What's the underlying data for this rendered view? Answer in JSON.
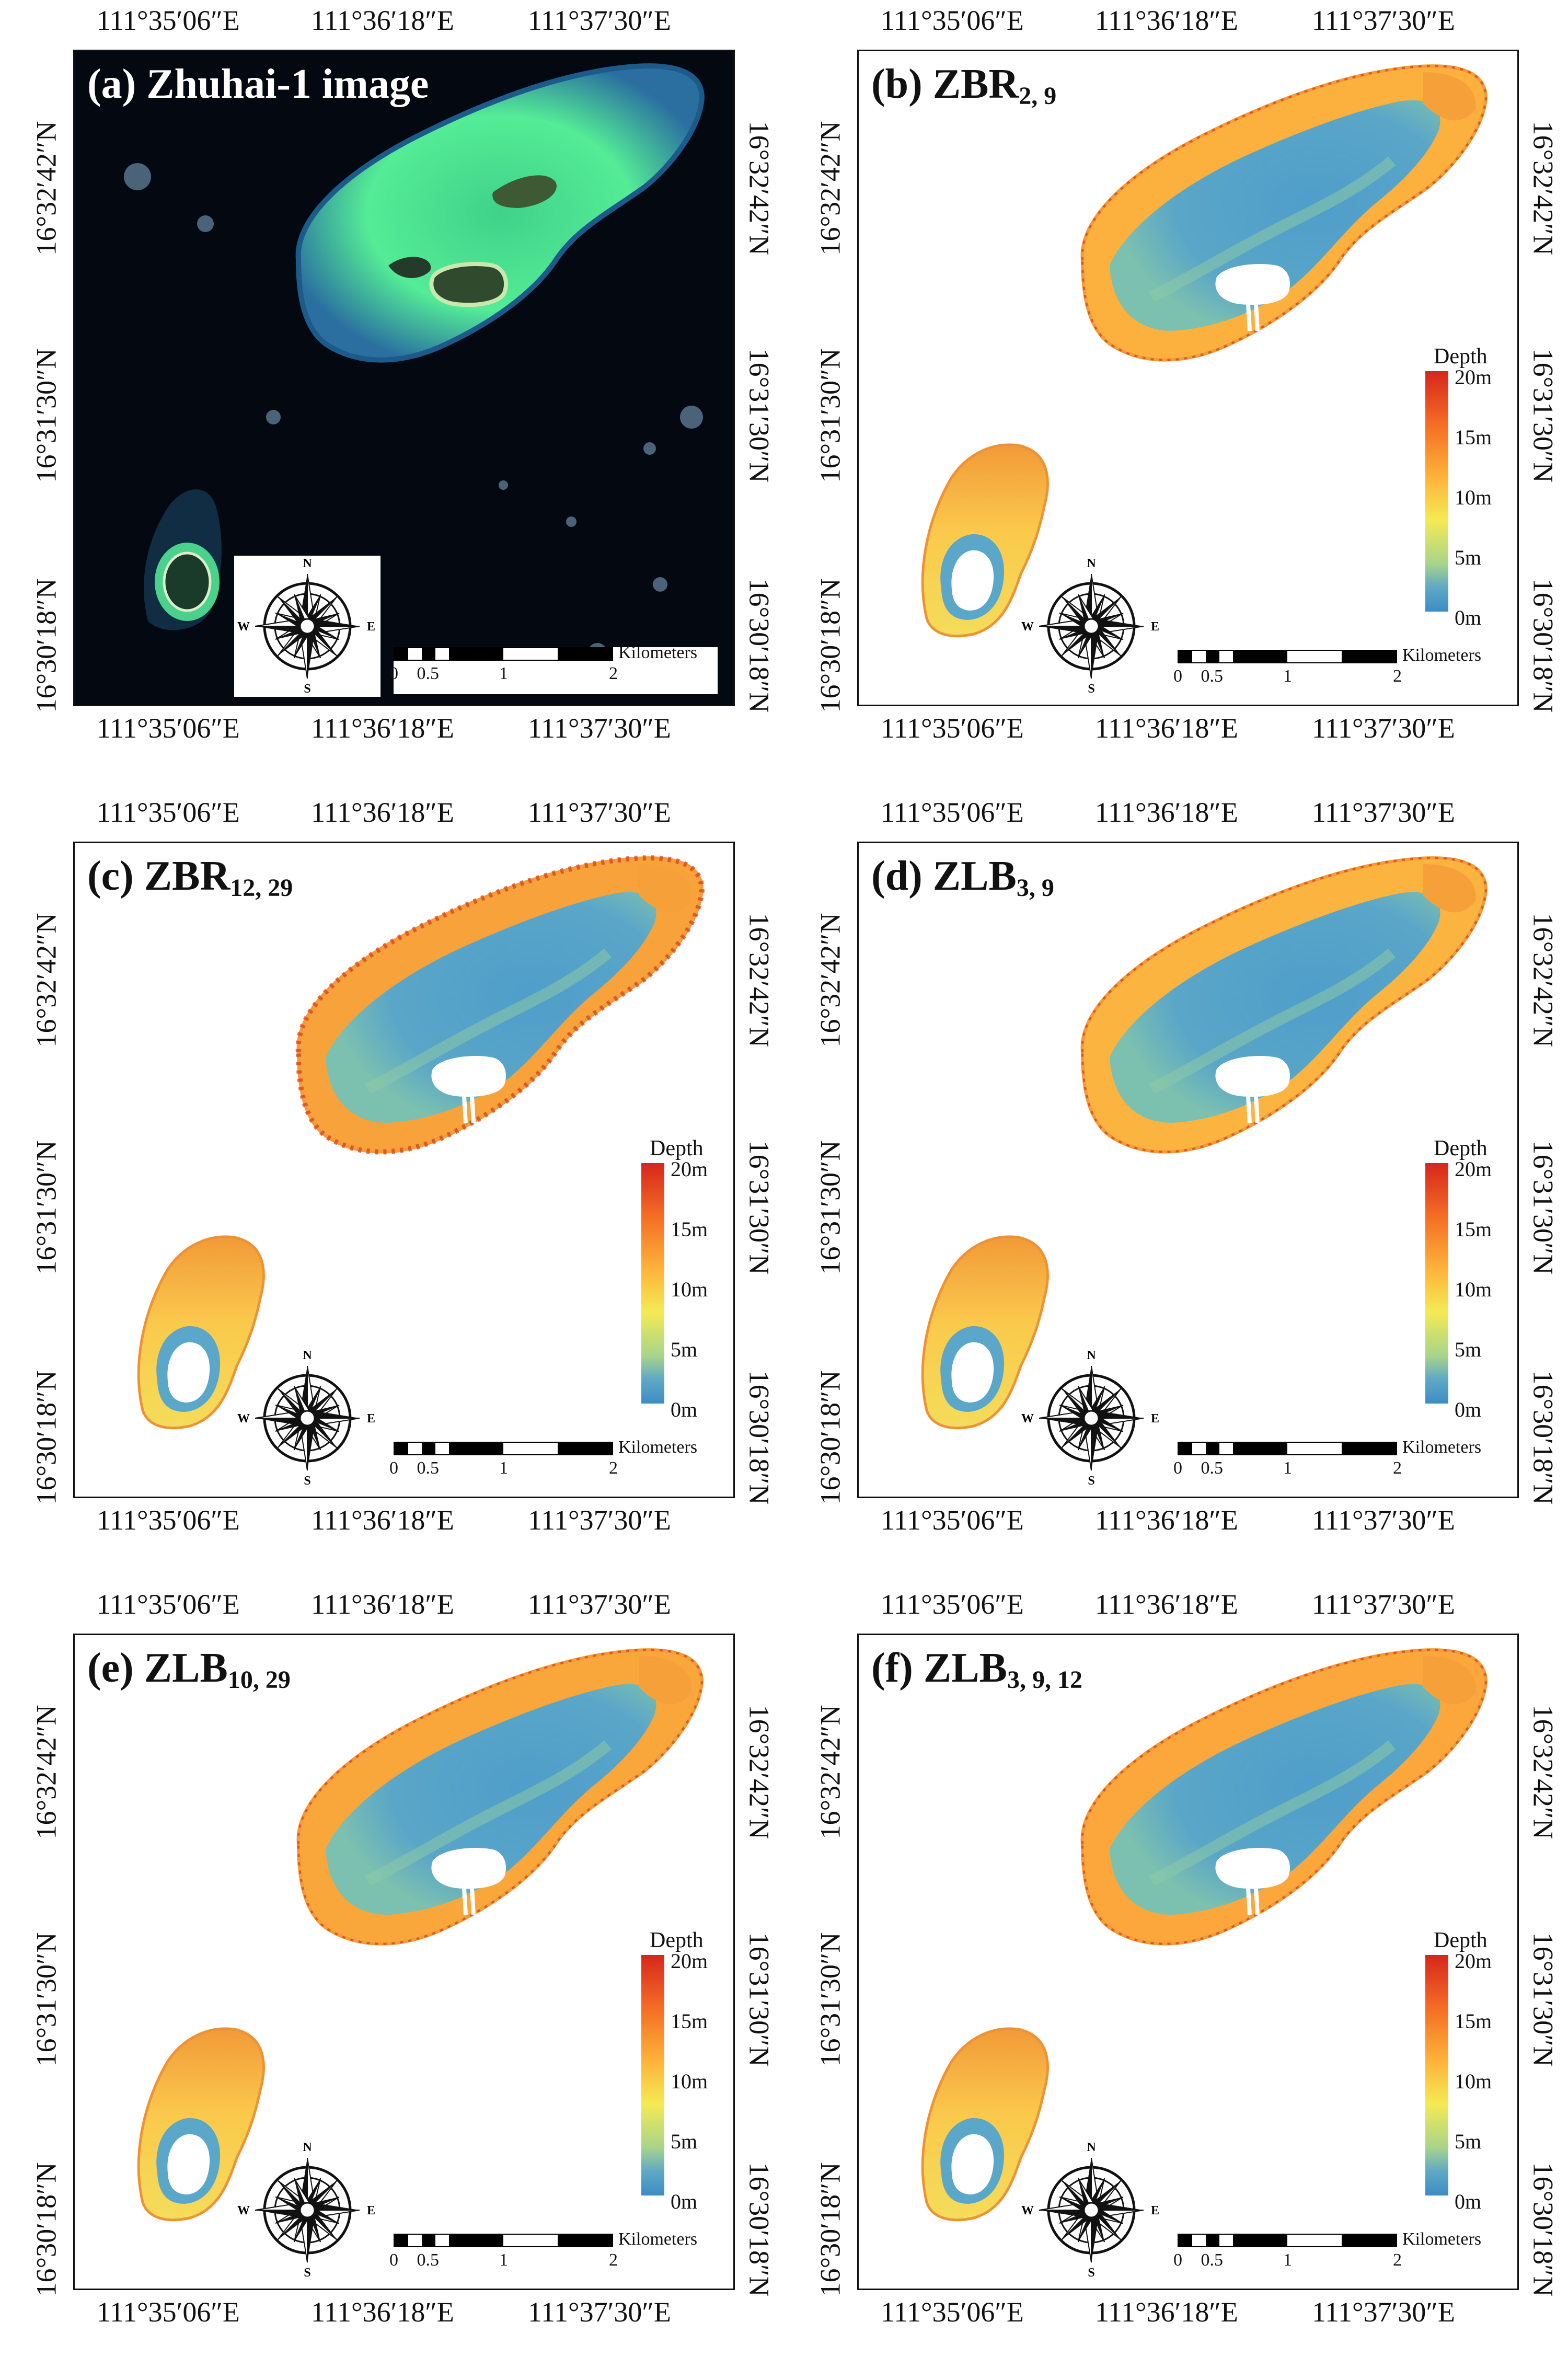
{
  "figure": {
    "lon_ticks": [
      "111°35′06″E",
      "111°36′18″E",
      "111°37′30″E"
    ],
    "lat_ticks": [
      "16°32′42″N",
      "16°31′30″N",
      "16°30′18″N"
    ],
    "colors": {
      "depth_0": "#3c8cc4",
      "depth_5": "#8ccaa8",
      "depth_10": "#f4ea55",
      "depth_15": "#fdae38",
      "depth_20": "#d7261c",
      "satellite_sea": "#040810",
      "satellite_reef": "#4ee88e"
    }
  },
  "legend": {
    "title": "Depth",
    "max_m": 20,
    "labels": [
      "20m",
      "15m",
      "10m",
      "5m",
      "0m"
    ]
  },
  "compass": {
    "n": "N",
    "s": "S",
    "e": "E",
    "w": "W"
  },
  "scalebar": {
    "unit": "Kilometers",
    "labels": [
      "0",
      "0.5",
      "1",
      "2"
    ]
  },
  "panels": [
    {
      "id": "a",
      "prefix": "(a) ",
      "name": "Zhuhai-1 image",
      "subscript": ""
    },
    {
      "id": "b",
      "prefix": "(b) ",
      "name": "ZBR",
      "subscript": "2, 9"
    },
    {
      "id": "c",
      "prefix": "(c) ",
      "name": "ZBR",
      "subscript": "12, 29"
    },
    {
      "id": "d",
      "prefix": "(d) ",
      "name": "ZLB",
      "subscript": "3, 9"
    },
    {
      "id": "e",
      "prefix": "(e) ",
      "name": "ZLB",
      "subscript": "10, 29"
    },
    {
      "id": "f",
      "prefix": "(f) ",
      "name": "ZLB",
      "subscript": "3, 9, 12"
    }
  ]
}
